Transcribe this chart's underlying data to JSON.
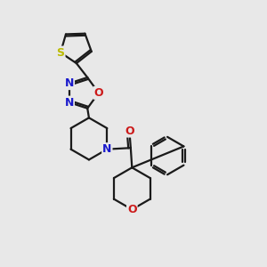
{
  "background_color": "#e8e8e8",
  "bond_color": "#1a1a1a",
  "bond_width": 1.6,
  "S_color": "#bbbb00",
  "N_color": "#1a1acc",
  "O_color": "#cc1a1a",
  "font_size": 9,
  "figsize": [
    3.0,
    3.0
  ],
  "dpi": 100,
  "xlim": [
    0,
    10
  ],
  "ylim": [
    0,
    10
  ]
}
